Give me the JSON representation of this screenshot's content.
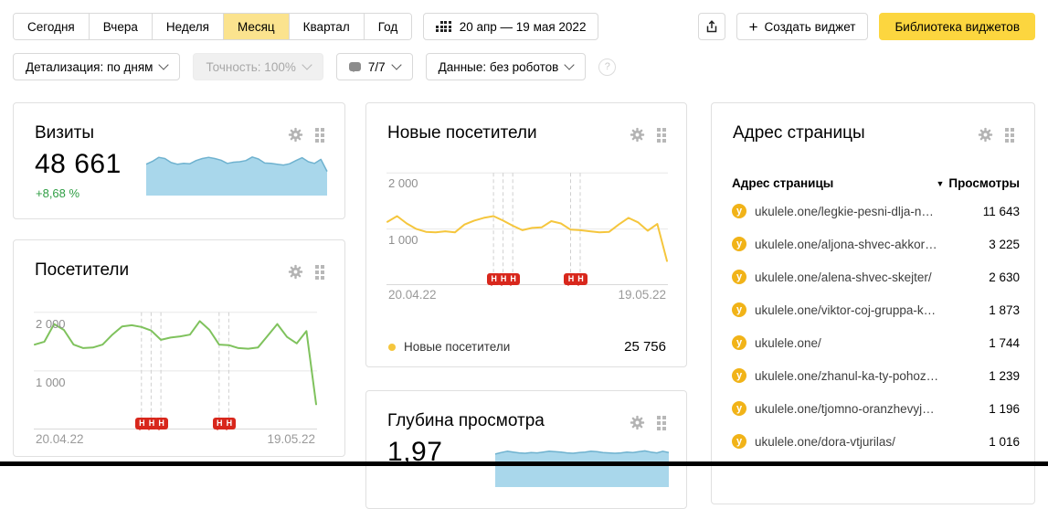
{
  "toolbar": {
    "periods": [
      "Сегодня",
      "Вчера",
      "Неделя",
      "Месяц",
      "Квартал",
      "Год"
    ],
    "active_index": 3,
    "date_range": "20 апр — 19 мая 2022",
    "plus": "+",
    "create_widget": "Создать виджет",
    "library": "Библиотека виджетов"
  },
  "filters": {
    "detalization": "Детализация: по дням",
    "accuracy": "Точность: 100%",
    "comments_counter": "7/7",
    "data_mode": "Данные: без роботов",
    "help": "?"
  },
  "widgets": {
    "visits": {
      "title": "Визиты",
      "value": "48 661",
      "delta": "+8,68 %"
    },
    "visitors": {
      "title": "Посетители"
    },
    "new_visitors": {
      "title": "Новые посетители",
      "legend_label": "Новые посетители",
      "legend_value": "25 756"
    },
    "depth": {
      "title": "Глубина просмотра",
      "value": "1,97"
    },
    "pages": {
      "title": "Адрес страницы",
      "col_url": "Адрес страницы",
      "col_views": "Просмотры",
      "sort_icon": "▼",
      "favicon_letter": "у",
      "rows": [
        {
          "url": "ukulele.one/legkie-pesni-dlja-n…",
          "views": "11 643"
        },
        {
          "url": "ukulele.one/aljona-shvec-akkor…",
          "views": "3 225"
        },
        {
          "url": "ukulele.one/alena-shvec-skejter/",
          "views": "2 630"
        },
        {
          "url": "ukulele.one/viktor-coj-gruppa-k…",
          "views": "1 873"
        },
        {
          "url": "ukulele.one/",
          "views": "1 744"
        },
        {
          "url": "ukulele.one/zhanul-ka-ty-pohoz…",
          "views": "1 239"
        },
        {
          "url": "ukulele.one/tjomno-oranzhevyj…",
          "views": "1 196"
        },
        {
          "url": "ukulele.one/dora-vtjurilas/",
          "views": "1 016"
        }
      ]
    }
  },
  "chart_data": [
    {
      "id": "visits-spark",
      "type": "area",
      "title": "Визиты — спарклайн",
      "values": [
        78,
        85,
        95,
        92,
        82,
        78,
        80,
        79,
        87,
        92,
        95,
        92,
        88,
        80,
        83,
        84,
        87,
        96,
        91,
        81,
        80,
        78,
        76,
        79,
        87,
        94,
        84,
        80,
        90,
        60
      ],
      "ylim": [
        0,
        100
      ],
      "fill": "#a9d7eb",
      "stroke": "#6fb2cf"
    },
    {
      "id": "visitors-svg",
      "type": "line",
      "title": "Посетители",
      "x_start": "20.04.22",
      "x_end": "19.05.22",
      "values": [
        1450,
        1500,
        1800,
        1700,
        1450,
        1390,
        1400,
        1450,
        1620,
        1760,
        1780,
        1750,
        1690,
        1530,
        1570,
        1590,
        1620,
        1850,
        1700,
        1450,
        1440,
        1390,
        1380,
        1400,
        1600,
        1800,
        1580,
        1470,
        1680,
        430
      ],
      "ylim": [
        0,
        2200
      ],
      "yticks": [
        {
          "v": 2000,
          "label": "2 000"
        },
        {
          "v": 1000,
          "label": "1 000"
        }
      ],
      "color": "#7fc25d",
      "markers": {
        "label": "Н",
        "days": [
          11,
          12,
          13,
          19,
          20
        ],
        "color": "#d8271c"
      }
    },
    {
      "id": "new-svg",
      "type": "line",
      "title": "Новые посетители",
      "x_start": "20.04.22",
      "x_end": "19.05.22",
      "values": [
        1130,
        1230,
        1100,
        1000,
        950,
        940,
        960,
        940,
        1080,
        1150,
        1200,
        1230,
        1150,
        1060,
        980,
        1020,
        1030,
        1140,
        1100,
        990,
        980,
        960,
        940,
        950,
        1080,
        1200,
        1120,
        970,
        1090,
        430
      ],
      "ylim": [
        0,
        2200
      ],
      "yticks": [
        {
          "v": 2000,
          "label": "2 000"
        },
        {
          "v": 1000,
          "label": "1 000"
        }
      ],
      "color": "#f5c63d",
      "legend": {
        "label": "Новые посетители",
        "value": "25 756"
      },
      "markers": {
        "label": "Н",
        "days": [
          11,
          12,
          13,
          19,
          20
        ],
        "color": "#d8271c"
      }
    },
    {
      "id": "depth-spark",
      "type": "area",
      "title": "Глубина просмотра — спарклайн",
      "values": [
        82,
        86,
        89,
        87,
        85,
        84,
        86,
        85,
        87,
        89,
        88,
        87,
        85,
        84,
        86,
        87,
        89,
        88,
        86,
        85,
        84,
        85,
        87,
        86,
        88,
        90,
        87,
        85,
        89,
        86
      ],
      "ylim": [
        0,
        100
      ],
      "fill": "#a9d7eb",
      "stroke": "#6fb2cf"
    }
  ],
  "colors": {
    "accent_yellow": "#fcd63f",
    "active_period_yellow": "#fbe38e",
    "delta_green": "#2f9e44",
    "line_green": "#7fc25d",
    "line_yellow": "#f5c63d",
    "spark_fill": "#a9d7eb",
    "marker_red": "#d8271c"
  }
}
